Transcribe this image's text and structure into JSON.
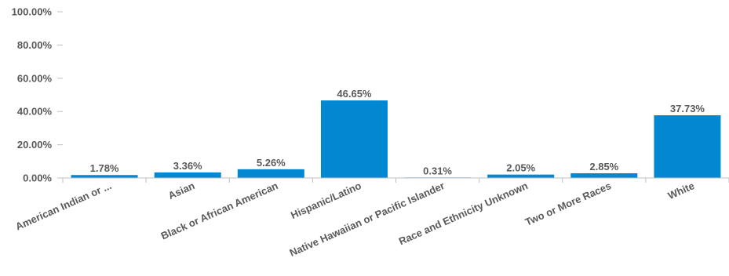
{
  "chart_data": {
    "type": "bar",
    "title": "",
    "xlabel": "",
    "ylabel": "",
    "categories": [
      "American Indian or ...",
      "Asian",
      "Black or African American",
      "Hispanic/Latino",
      "Native Hawaiian or Pacific Islander",
      "Race and Ethnicity Unknown",
      "Two or More Races",
      "White"
    ],
    "values": [
      1.78,
      3.36,
      5.26,
      46.65,
      0.31,
      2.05,
      2.85,
      37.73
    ],
    "value_labels": [
      "1.78%",
      "3.36%",
      "5.26%",
      "46.65%",
      "0.31%",
      "2.05%",
      "2.85%",
      "37.73%"
    ],
    "ylim": [
      0,
      100
    ],
    "yticks": [
      0,
      20,
      40,
      60,
      80,
      100
    ],
    "ytick_labels": [
      "0.00%",
      "20.00%",
      "40.00%",
      "60.00%",
      "80.00%",
      "100.00%"
    ],
    "grid": false,
    "legend": "none",
    "bar_color": "#0288d1",
    "axis_color": "#bfbfbf",
    "text_color": "#595959"
  }
}
